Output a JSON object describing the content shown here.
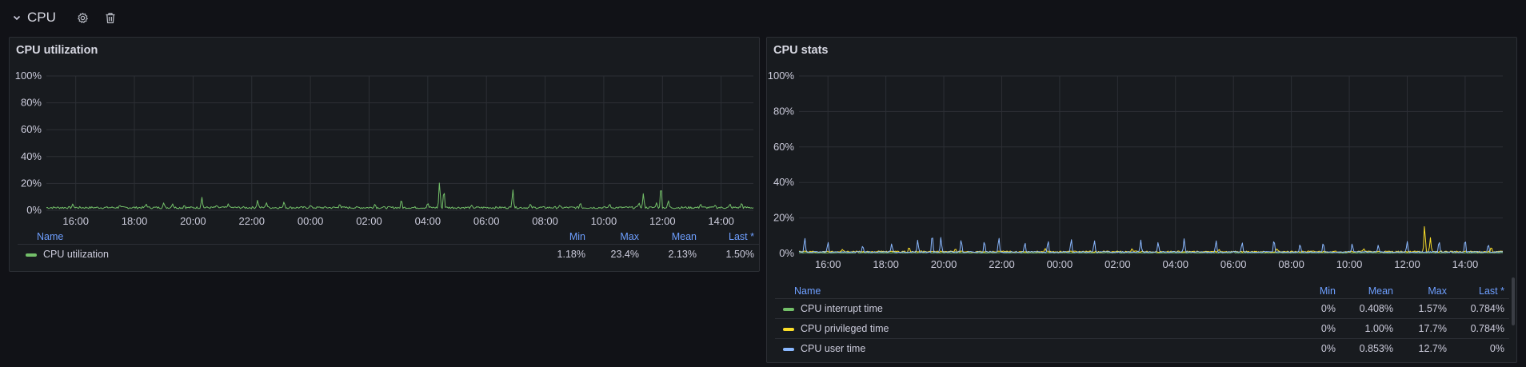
{
  "row": {
    "title": "CPU",
    "chevron_icon": "chevron-down-icon",
    "settings_icon": "gear-icon",
    "delete_icon": "trash-icon"
  },
  "colors": {
    "background": "#111217",
    "panel": "#181b1f",
    "grid": "#2c2f35",
    "header_blue": "#6e9fff",
    "green": "#73bf69",
    "yellow": "#fade2a",
    "blue": "#8ab8ff"
  },
  "panels": [
    {
      "title": "CPU utilization",
      "legend_columns": [
        "Name",
        "Min",
        "Max",
        "Mean",
        "Last *"
      ],
      "legend_rows": [
        {
          "name": "CPU utilization",
          "color": "#73bf69",
          "values": [
            "1.18%",
            "23.4%",
            "2.13%",
            "1.50%"
          ]
        }
      ]
    },
    {
      "title": "CPU stats",
      "legend_columns": [
        "Name",
        "Min",
        "Mean",
        "Max",
        "Last *"
      ],
      "legend_rows": [
        {
          "name": "CPU interrupt time",
          "color": "#73bf69",
          "values": [
            "0%",
            "0.408%",
            "1.57%",
            "0.784%"
          ]
        },
        {
          "name": "CPU privileged time",
          "color": "#fade2a",
          "values": [
            "0%",
            "1.00%",
            "17.7%",
            "0.784%"
          ]
        },
        {
          "name": "CPU user time",
          "color": "#8ab8ff",
          "values": [
            "0%",
            "0.853%",
            "12.7%",
            "0%"
          ]
        }
      ]
    }
  ],
  "chart_data": [
    {
      "type": "line",
      "title": "CPU utilization",
      "yticks": [
        "0%",
        "20%",
        "40%",
        "60%",
        "80%",
        "100%"
      ],
      "ylim": [
        0,
        100
      ],
      "xticks": [
        "16:00",
        "18:00",
        "20:00",
        "22:00",
        "00:00",
        "02:00",
        "04:00",
        "06:00",
        "08:00",
        "10:00",
        "12:00",
        "14:00"
      ],
      "xlim_hours": [
        15.0,
        39.1
      ],
      "series": [
        {
          "name": "CPU utilization",
          "baseline": 2.0,
          "spikes": [
            [
              15.9,
              5
            ],
            [
              17.5,
              4
            ],
            [
              18.4,
              5
            ],
            [
              19.0,
              6
            ],
            [
              19.3,
              5
            ],
            [
              19.7,
              4
            ],
            [
              20.3,
              10
            ],
            [
              20.8,
              4
            ],
            [
              21.2,
              5
            ],
            [
              22.2,
              8
            ],
            [
              22.5,
              6
            ],
            [
              23.1,
              7
            ],
            [
              24.0,
              4
            ],
            [
              25.0,
              5
            ],
            [
              26.2,
              5
            ],
            [
              27.1,
              9
            ],
            [
              28.0,
              6
            ],
            [
              28.4,
              23.4
            ],
            [
              28.55,
              17
            ],
            [
              29.5,
              4
            ],
            [
              30.9,
              17
            ],
            [
              31.5,
              5
            ],
            [
              32.5,
              4
            ],
            [
              33.2,
              6
            ],
            [
              34.2,
              5
            ],
            [
              35.2,
              6
            ],
            [
              35.35,
              13
            ],
            [
              35.8,
              6
            ],
            [
              35.95,
              21
            ],
            [
              36.2,
              8
            ],
            [
              37.3,
              5
            ],
            [
              37.8,
              4
            ],
            [
              38.3,
              5
            ],
            [
              38.7,
              6
            ]
          ]
        }
      ]
    },
    {
      "type": "line",
      "title": "CPU stats",
      "yticks": [
        "0%",
        "20%",
        "40%",
        "60%",
        "80%",
        "100%"
      ],
      "ylim": [
        0,
        100
      ],
      "xticks": [
        "16:00",
        "18:00",
        "20:00",
        "22:00",
        "00:00",
        "02:00",
        "04:00",
        "06:00",
        "08:00",
        "10:00",
        "12:00",
        "14:00"
      ],
      "xlim_hours": [
        15.0,
        39.3
      ],
      "series": [
        {
          "name": "CPU interrupt time",
          "baseline": 0.4,
          "spikes": [
            [
              17.0,
              1.5
            ],
            [
              19.5,
              1.4
            ],
            [
              22.0,
              1.2
            ],
            [
              26.0,
              1.5
            ],
            [
              30.0,
              1.3
            ],
            [
              34.0,
              1.5
            ],
            [
              37.5,
              1.4
            ]
          ]
        },
        {
          "name": "CPU privileged time",
          "baseline": 1.0,
          "spikes": [
            [
              16.5,
              2.5
            ],
            [
              18.8,
              4
            ],
            [
              20.4,
              3
            ],
            [
              23.5,
              3
            ],
            [
              26.5,
              3
            ],
            [
              29.5,
              2.5
            ],
            [
              31.5,
              3
            ],
            [
              34.5,
              3
            ],
            [
              36.6,
              17.7
            ],
            [
              36.8,
              9
            ],
            [
              38.9,
              4
            ]
          ]
        },
        {
          "name": "CPU user time",
          "baseline": 0.8,
          "spikes": [
            [
              15.2,
              10
            ],
            [
              16.0,
              7
            ],
            [
              17.2,
              5
            ],
            [
              18.2,
              6
            ],
            [
              19.1,
              8
            ],
            [
              19.6,
              12.7
            ],
            [
              19.9,
              10
            ],
            [
              20.6,
              9
            ],
            [
              21.4,
              8
            ],
            [
              21.9,
              10
            ],
            [
              22.8,
              7
            ],
            [
              23.6,
              8
            ],
            [
              24.4,
              9
            ],
            [
              25.2,
              8
            ],
            [
              26.8,
              8
            ],
            [
              27.4,
              7
            ],
            [
              28.3,
              9
            ],
            [
              29.4,
              8
            ],
            [
              30.3,
              7
            ],
            [
              31.4,
              9
            ],
            [
              32.3,
              6
            ],
            [
              33.1,
              7
            ],
            [
              34.1,
              6
            ],
            [
              35.0,
              5
            ],
            [
              36.0,
              7
            ],
            [
              37.1,
              8
            ],
            [
              38.0,
              9
            ],
            [
              38.8,
              6
            ]
          ]
        }
      ]
    }
  ]
}
